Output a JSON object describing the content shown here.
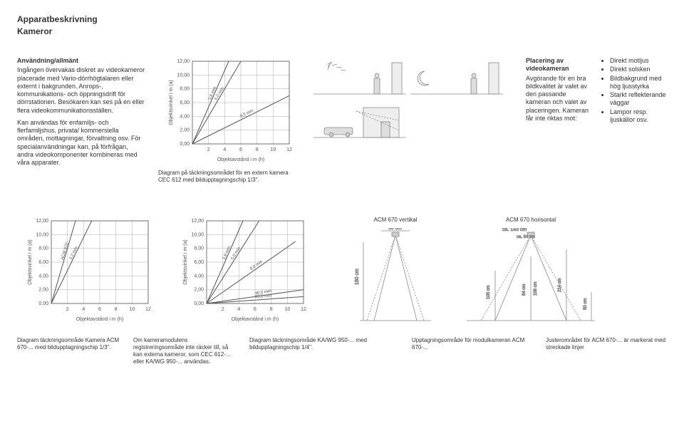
{
  "header": {
    "title": "Apparatbeskrivning",
    "subtitle": "Kameror"
  },
  "top_left_text": {
    "heading": "Användning/allmänt",
    "p1": "Ingången övervakas diskret av videokameror placerade med Vario-dörrhögtalaren eller externt i bakgrunden. Anrops-, kommunikations- och öppningsdrift för dörrstationen. Besökaren kan ses på en eller flera videokommunikationsställen.",
    "p2": "Kan användas för enfamiljs- och flerfamiljshus, privata/ kommersiella områden, mottagningar, förvaltning osv. För specialanvändningar kan, på förfrågan, andra videokomponenter kombineras med våra apparater."
  },
  "chart1": {
    "type": "line",
    "ylim": [
      0,
      12
    ],
    "xlim": [
      0,
      12
    ],
    "yticks": [
      "0,00",
      "2,00",
      "4,00",
      "6,00",
      "8,00",
      "10,00",
      "12,00"
    ],
    "xticks": [
      "2",
      "4",
      "6",
      "8",
      "10",
      "12"
    ],
    "yaxis_label": "Objektsvinkel i m (a)",
    "xaxis_label": "Objektavstånd i m (h)",
    "series": [
      {
        "label": "3,8 mm",
        "color": "#555",
        "points": [
          [
            0,
            0
          ],
          [
            4.5,
            12
          ]
        ]
      },
      {
        "label": "5,0 mm",
        "color": "#555",
        "points": [
          [
            0,
            0
          ],
          [
            6,
            12
          ]
        ]
      },
      {
        "label": "9,5 mm",
        "color": "#555",
        "points": [
          [
            0,
            0
          ],
          [
            12,
            7
          ]
        ]
      }
    ],
    "grid_color": "#999",
    "background_color": "#ffffff",
    "label_fontsize": 7,
    "caption": "Diagram på täckningsområdet för en extern kamera CEC 612 med bildupptagningschip 1/3\"."
  },
  "placement_text": {
    "heading": "Placering av videokameran",
    "body": "Avgörande för en bra bildkvalitet är valet av den passande kameran och valet av placeringen. Kameran får inte riktas mot:"
  },
  "avoid_list": {
    "items": [
      "Direkt motljus",
      "Direkt solsken",
      "Bildbakgrund med hög ljusstyrka",
      "Starkt reflekterande väggar",
      "Lampor resp. ljuskällor osv."
    ]
  },
  "chart2": {
    "type": "line",
    "ylim": [
      0,
      12
    ],
    "xlim": [
      0,
      12
    ],
    "yticks": [
      "0,00",
      "2,00",
      "4,00",
      "6,00",
      "8,00",
      "10,00",
      "12,00"
    ],
    "xticks": [
      "2",
      "4",
      "6",
      "8",
      "10",
      "12"
    ],
    "yaxis_label": "Objektsvinkel i m (a)",
    "xaxis_label": "Objektavstånd i m (h)",
    "series": [
      {
        "label": "ACM 670",
        "color": "#555",
        "points": [
          [
            0,
            0
          ],
          [
            3,
            12
          ]
        ]
      },
      {
        "label": "3,2 mm",
        "color": "#555",
        "points": [
          [
            0,
            0
          ],
          [
            5,
            12
          ]
        ]
      }
    ],
    "grid_color": "#999",
    "background_color": "#ffffff",
    "label_fontsize": 7,
    "caption_a": "Diagram täckningsområde Kamera ACM 670-... med bildupptagningschip 1/3\".",
    "caption_b": "Om kameramodulens registreringsområde inte räcker till, så kan externa kameror, som CEC 612-... eller KA/WG 950-... användas."
  },
  "chart3": {
    "type": "line",
    "ylim": [
      0,
      12
    ],
    "xlim": [
      0,
      12
    ],
    "yticks": [
      "0,00",
      "2,00",
      "4,00",
      "6,00",
      "8,00",
      "10,00",
      "12,00"
    ],
    "xticks": [
      "2",
      "4",
      "6",
      "8",
      "10",
      "12"
    ],
    "yaxis_label": "Objektsvinkel i m (a)",
    "xaxis_label": "Objektavstånd i m (h)",
    "series": [
      {
        "label": "3,8 mm",
        "color": "#555",
        "points": [
          [
            0,
            0
          ],
          [
            4.5,
            12
          ]
        ]
      },
      {
        "label": "5,0 mm",
        "color": "#555",
        "points": [
          [
            0,
            0
          ],
          [
            6.5,
            12
          ]
        ]
      },
      {
        "label": "8,0 mm",
        "color": "#555",
        "points": [
          [
            0,
            0
          ],
          [
            11,
            9
          ]
        ]
      },
      {
        "label": "40,0 mm",
        "color": "#555",
        "points": [
          [
            0,
            0
          ],
          [
            12,
            2
          ]
        ]
      },
      {
        "label": "83,0 mm",
        "color": "#555",
        "points": [
          [
            0,
            0
          ],
          [
            12,
            1
          ]
        ]
      }
    ],
    "grid_color": "#999",
    "background_color": "#ffffff",
    "label_fontsize": 7,
    "caption": "Diagram täckningsområde KA/WG 950-... med bildupptagningschip 1/4\"."
  },
  "acm_diagram": {
    "title_vertical": "ACM 670 vertikal",
    "title_horizontal": "ACM 670 horisontal",
    "dims": {
      "v_width_cm": "50 cm",
      "v_height_cm": "160 cm",
      "h_width_cm": "ca. 143 cm",
      "h_inner_cm": "ca. 84 cm",
      "h_col1_cm": "106 cm",
      "h_col2_cm": "84 cm",
      "h_col2b_cm": "109 cm",
      "h_col3_cm": "214 cm",
      "h_right_cm": "50 cm"
    },
    "caption_a": "Upptagningsområde för modulkameran ACM 670-...",
    "caption_b": "Justerområdet för ACM 670-... är markerat med streckade linjer"
  },
  "colors": {
    "text": "#333333",
    "line": "#555555",
    "grid": "#999999",
    "light": "#cccccc"
  }
}
